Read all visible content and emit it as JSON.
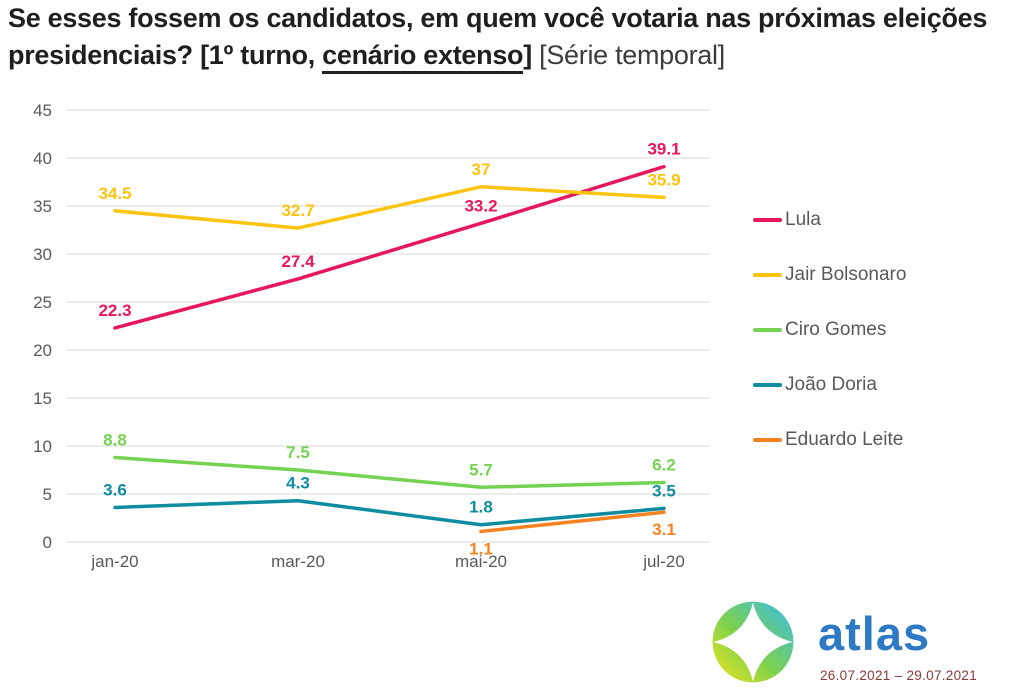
{
  "title": {
    "bold_part": "Se esses fossem os candidatos, em quem você votaria nas próximas eleições presidenciais? [1º turno, ",
    "underlined_part": "cenário extenso",
    "bold_close": "]",
    "normal_part": " [Série temporal]"
  },
  "colors": {
    "gridline": "#d9d9d9",
    "axis_text": "#595959",
    "title_text": "#1f1f1f",
    "legend_text": "#595959",
    "date_text": "#8a3a38"
  },
  "chart_data": {
    "type": "line",
    "title": "Se esses fossem os candidatos, em quem você votaria nas próximas eleições presidenciais? [1º turno, cenário extenso] [Série temporal]",
    "categories": [
      "jan-20",
      "mar-20",
      "mai-20",
      "jul-20"
    ],
    "series": [
      {
        "name": "Lula",
        "color": "#e8175d",
        "values": [
          22.3,
          27.4,
          33.2,
          39.1
        ]
      },
      {
        "name": "Jair Bolsonaro",
        "color": "#fcc30f",
        "values": [
          34.5,
          32.7,
          37,
          35.9
        ]
      },
      {
        "name": "Ciro Gomes",
        "color": "#74d452",
        "values": [
          8.8,
          7.5,
          5.7,
          6.2
        ]
      },
      {
        "name": "João Doria",
        "color": "#0e8da0",
        "values": [
          3.6,
          4.3,
          1.8,
          3.5
        ]
      },
      {
        "name": "Eduardo Leite",
        "color": "#f5821f",
        "values": [
          null,
          null,
          1.1,
          3.1
        ],
        "label_position": "below"
      }
    ],
    "ylim": [
      0,
      45
    ],
    "ytick_step": 5,
    "grid": true,
    "legend_position": "right",
    "data_labels": true,
    "xlabel": "",
    "ylabel": ""
  },
  "footer": {
    "brand_name": "atlas",
    "brand_color": "#2e79c4",
    "date_range": "26.07.2021 – 29.07.2021"
  }
}
